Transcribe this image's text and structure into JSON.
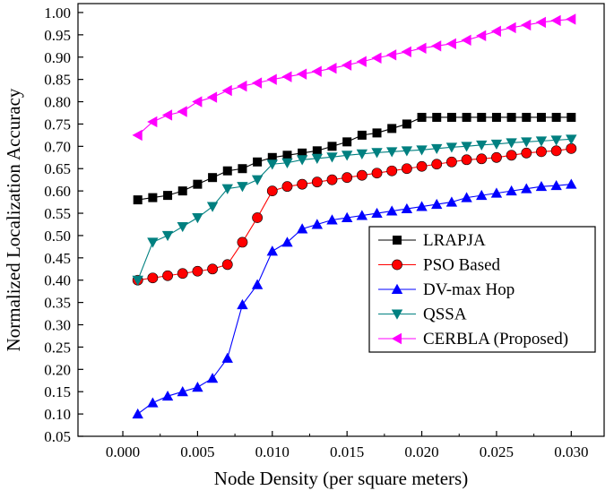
{
  "chart_data": {
    "type": "line",
    "title": "",
    "xlabel": "Node Density (per square meters)",
    "ylabel": "Normalized Localization Accuracy",
    "xlim": [
      -0.003,
      0.0322
    ],
    "ylim": [
      0.05,
      1.02
    ],
    "xticks": [
      0.0,
      0.005,
      0.01,
      0.015,
      0.02,
      0.025,
      0.03
    ],
    "xtick_labels": [
      "0.000",
      "0.005",
      "0.010",
      "0.015",
      "0.020",
      "0.025",
      "0.030"
    ],
    "yticks": [
      0.05,
      0.1,
      0.15,
      0.2,
      0.25,
      0.3,
      0.35,
      0.4,
      0.45,
      0.5,
      0.55,
      0.6,
      0.65,
      0.7,
      0.75,
      0.8,
      0.85,
      0.9,
      0.95,
      1.0
    ],
    "ytick_labels": [
      "0.05",
      "0.10",
      "0.15",
      "0.20",
      "0.25",
      "0.30",
      "0.35",
      "0.40",
      "0.45",
      "0.50",
      "0.55",
      "0.60",
      "0.65",
      "0.70",
      "0.75",
      "0.80",
      "0.85",
      "0.90",
      "0.95",
      "1.00"
    ],
    "grid": false,
    "legend_position": "bottom-right",
    "x": [
      0.001,
      0.002,
      0.003,
      0.004,
      0.005,
      0.006,
      0.007,
      0.008,
      0.009,
      0.01,
      0.011,
      0.012,
      0.013,
      0.014,
      0.015,
      0.016,
      0.017,
      0.018,
      0.019,
      0.02,
      0.021,
      0.022,
      0.023,
      0.024,
      0.025,
      0.026,
      0.027,
      0.028,
      0.029,
      0.03
    ],
    "series": [
      {
        "name": "LRAPJA",
        "color": "#000000",
        "marker": "square",
        "values": [
          0.58,
          0.585,
          0.59,
          0.6,
          0.615,
          0.63,
          0.645,
          0.65,
          0.665,
          0.675,
          0.68,
          0.685,
          0.69,
          0.7,
          0.71,
          0.725,
          0.73,
          0.74,
          0.75,
          0.765,
          0.765,
          0.765,
          0.765,
          0.765,
          0.765,
          0.765,
          0.765,
          0.765,
          0.765,
          0.765
        ]
      },
      {
        "name": "PSO Based",
        "color": "#ff0000",
        "marker": "circle",
        "values": [
          0.4,
          0.405,
          0.41,
          0.415,
          0.42,
          0.425,
          0.435,
          0.485,
          0.54,
          0.6,
          0.61,
          0.615,
          0.62,
          0.625,
          0.63,
          0.635,
          0.64,
          0.645,
          0.65,
          0.655,
          0.66,
          0.665,
          0.67,
          0.672,
          0.675,
          0.68,
          0.685,
          0.688,
          0.69,
          0.695
        ]
      },
      {
        "name": "DV-max Hop",
        "color": "#0000ff",
        "marker": "triangle-up",
        "values": [
          0.1,
          0.125,
          0.14,
          0.15,
          0.16,
          0.18,
          0.225,
          0.345,
          0.39,
          0.465,
          0.485,
          0.515,
          0.525,
          0.535,
          0.54,
          0.545,
          0.55,
          0.555,
          0.56,
          0.565,
          0.57,
          0.575,
          0.585,
          0.59,
          0.595,
          0.6,
          0.605,
          0.61,
          0.612,
          0.615
        ]
      },
      {
        "name": "QSSA",
        "color": "#008080",
        "marker": "triangle-down",
        "values": [
          0.4,
          0.485,
          0.5,
          0.52,
          0.54,
          0.565,
          0.605,
          0.61,
          0.625,
          0.66,
          0.663,
          0.67,
          0.673,
          0.676,
          0.68,
          0.683,
          0.686,
          0.688,
          0.69,
          0.692,
          0.695,
          0.698,
          0.7,
          0.703,
          0.705,
          0.708,
          0.71,
          0.712,
          0.714,
          0.716
        ]
      },
      {
        "name": "CERBLA (Proposed)",
        "color": "#ff00ff",
        "marker": "triangle-left",
        "values": [
          0.725,
          0.755,
          0.77,
          0.778,
          0.8,
          0.81,
          0.825,
          0.835,
          0.842,
          0.85,
          0.856,
          0.862,
          0.868,
          0.875,
          0.882,
          0.89,
          0.898,
          0.905,
          0.912,
          0.92,
          0.925,
          0.93,
          0.938,
          0.948,
          0.958,
          0.966,
          0.972,
          0.978,
          0.982,
          0.985
        ]
      }
    ]
  }
}
